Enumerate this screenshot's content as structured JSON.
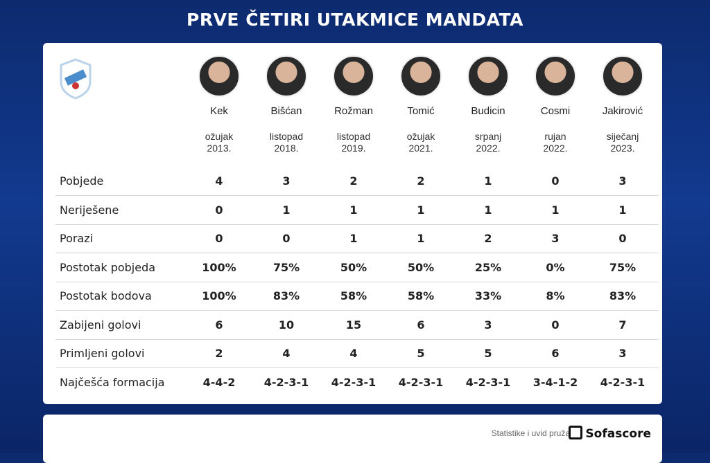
{
  "title": "PRVE ČETIRI UTAKMICE MANDATA",
  "coaches": [
    {
      "name": "Kek",
      "month": "ožujak",
      "year": "2013."
    },
    {
      "name": "Bišćan",
      "month": "listopad",
      "year": "2018."
    },
    {
      "name": "Rožman",
      "month": "listopad",
      "year": "2019."
    },
    {
      "name": "Tomić",
      "month": "ožujak",
      "year": "2021."
    },
    {
      "name": "Budicin",
      "month": "srpanj",
      "year": "2022."
    },
    {
      "name": "Cosmi",
      "month": "rujan",
      "year": "2022."
    },
    {
      "name": "Jakirović",
      "month": "siječanj",
      "year": "2023."
    }
  ],
  "rows": [
    {
      "label": "Pobjede",
      "values": [
        4,
        3,
        2,
        2,
        1,
        0,
        3
      ]
    },
    {
      "label": "Neriješene",
      "values": [
        0,
        1,
        1,
        1,
        1,
        1,
        1
      ]
    },
    {
      "label": "Porazi",
      "values": [
        0,
        0,
        1,
        1,
        2,
        3,
        0
      ]
    },
    {
      "label": "Postotak pobjeda",
      "values": [
        "100%",
        "75%",
        "50%",
        "50%",
        "25%",
        "0%",
        "75%"
      ]
    },
    {
      "label": "Postotak bodova",
      "values": [
        "100%",
        "83%",
        "58%",
        "58%",
        "33%",
        "8%",
        "83%"
      ]
    },
    {
      "label": "Zabijeni golovi",
      "values": [
        6,
        10,
        15,
        6,
        3,
        0,
        7
      ]
    },
    {
      "label": "Primljeni golovi",
      "values": [
        2,
        4,
        4,
        5,
        5,
        6,
        3
      ]
    },
    {
      "label": "Najčešća formacija",
      "values": [
        "4-4-2",
        "4-2-3-1",
        "4-2-3-1",
        "4-2-3-1",
        "4-2-3-1",
        "3-4-1-2",
        "4-2-3-1"
      ]
    }
  ],
  "footer": {
    "credit": "Statistike i uvid pruža",
    "brand": "Sofascore"
  }
}
